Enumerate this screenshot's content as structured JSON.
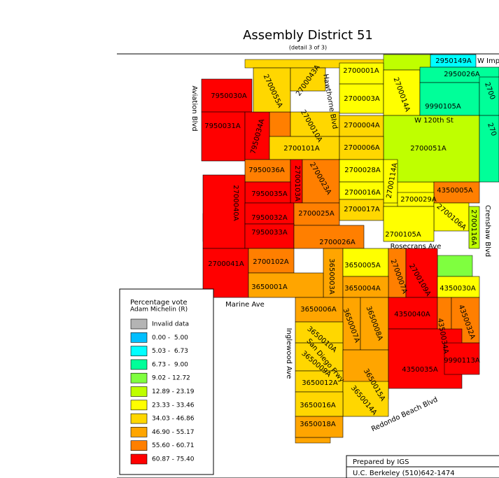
{
  "header": {
    "title": "Assembly District 51",
    "subtitle": "(detail 3 of 3)"
  },
  "precincts": [
    {
      "label": "7950030A",
      "color": "#ff0000"
    },
    {
      "label": "7950031A",
      "color": "#ff0000"
    },
    {
      "label": "7950034A",
      "color": "#ff0000"
    },
    {
      "label": "2700055A",
      "color": "#ffd700"
    },
    {
      "label": "2700043A",
      "color": "#ffd700"
    },
    {
      "label": "2700001A",
      "color": "#ffff00"
    },
    {
      "label": "2700003A",
      "color": "#ffff00"
    },
    {
      "label": "2700014A",
      "color": "#ffff00"
    },
    {
      "label": "2950149A",
      "color": "#00ffff"
    },
    {
      "label": "2950026A",
      "color": "#00ff99"
    },
    {
      "label": "9990105A",
      "color": "#00ff99"
    },
    {
      "label": "2700",
      "color": "#00ff99"
    },
    {
      "label": "2700010A",
      "color": "#ffd700"
    },
    {
      "label": "2700004A",
      "color": "#ffd700"
    },
    {
      "label": "2700051A",
      "color": "#bfff00"
    },
    {
      "label": "270",
      "color": "#00ff99"
    },
    {
      "label": "2700101A",
      "color": "#ffd700"
    },
    {
      "label": "2700006A",
      "color": "#ffd700"
    },
    {
      "label": "7950036A",
      "color": "#ff7f00"
    },
    {
      "label": "2700103A",
      "color": "#ff0000"
    },
    {
      "label": "2700023A",
      "color": "#ff7f00"
    },
    {
      "label": "2700028A",
      "color": "#ffff00"
    },
    {
      "label": "2700114A",
      "color": "#ffff00"
    },
    {
      "label": "4350005A",
      "color": "#ff7f00"
    },
    {
      "label": "7950035A",
      "color": "#ff0000"
    },
    {
      "label": "2700016A",
      "color": "#ffff00"
    },
    {
      "label": "2700029A",
      "color": "#ffff00"
    },
    {
      "label": "2700106A",
      "color": "#ffff00"
    },
    {
      "label": "2700116A",
      "color": "#bfff00"
    },
    {
      "label": "2700040A",
      "color": "#ff0000"
    },
    {
      "label": "7950032A",
      "color": "#ff0000"
    },
    {
      "label": "2700025A",
      "color": "#ff7f00"
    },
    {
      "label": "2700017A",
      "color": "#ffd700"
    },
    {
      "label": "7950033A",
      "color": "#ff0000"
    },
    {
      "label": "2700105A",
      "color": "#ffff00"
    },
    {
      "label": "2700026A",
      "color": "#ff7f00"
    },
    {
      "label": "2700041A",
      "color": "#ff0000"
    },
    {
      "label": "2700102A",
      "color": "#ff7f00"
    },
    {
      "label": "3650003A",
      "color": "#ffa500"
    },
    {
      "label": "3650005A",
      "color": "#ffff00"
    },
    {
      "label": "2700007A",
      "color": "#ff7f00"
    },
    {
      "label": "2700109A",
      "color": "#ff0000"
    },
    {
      "label": "4350030A",
      "color": "#ffff00"
    },
    {
      "label": "3650001A",
      "color": "#ffa500"
    },
    {
      "label": "3650004A",
      "color": "#ffa500"
    },
    {
      "label": "3650006A",
      "color": "#ffa500"
    },
    {
      "label": "3650007A",
      "color": "#ffa500"
    },
    {
      "label": "3650008A",
      "color": "#ffa500"
    },
    {
      "label": "4350040A",
      "color": "#ff0000"
    },
    {
      "label": "4350034A",
      "color": "#ff7f00"
    },
    {
      "label": "4350032A",
      "color": "#ff7f00"
    },
    {
      "label": "3650010A",
      "color": "#ffd700"
    },
    {
      "label": "3650009A",
      "color": "#ffd700"
    },
    {
      "label": "3650015A",
      "color": "#ffa500"
    },
    {
      "label": "4350035A",
      "color": "#ff0000"
    },
    {
      "label": "9990113A",
      "color": "#ff0000"
    },
    {
      "label": "3650012A",
      "color": "#ffd700"
    },
    {
      "label": "3650014A",
      "color": "#ffd700"
    },
    {
      "label": "3650016A",
      "color": "#ffd700"
    },
    {
      "label": "3650018A",
      "color": "#ffa500"
    }
  ],
  "streets": [
    "Aviation Blvd",
    "Hawthorne Blvd",
    "W 120th St",
    "Crenshaw Blvd",
    "Rosecrans Ave",
    "Marine Ave",
    "Inglewood Ave",
    "San Diego Frwy",
    "Redondo Beach Blvd",
    "W Imp"
  ],
  "legend": {
    "title": "Percentage vote",
    "subtitle": "Adam Michelin (R)",
    "items": [
      {
        "label": "Invalid data",
        "color": "#b4b4b4"
      },
      {
        "label": "0.00 -  5.00",
        "color": "#00bfff"
      },
      {
        "label": "5.03 -  6.73",
        "color": "#00ffff"
      },
      {
        "label": "6.73 -  9.00",
        "color": "#00ff99"
      },
      {
        "label": "9.02 - 12.72",
        "color": "#7fff3f"
      },
      {
        "label": "12.89 - 23.19",
        "color": "#bfff00"
      },
      {
        "label": "23.33 - 33.46",
        "color": "#ffff00"
      },
      {
        "label": "34.03 - 46.86",
        "color": "#ffd700"
      },
      {
        "label": "46.90 - 55.17",
        "color": "#ffa500"
      },
      {
        "label": "55.60 - 60.71",
        "color": "#ff7f00"
      },
      {
        "label": "60.87 - 75.40",
        "color": "#ff0000"
      }
    ]
  },
  "footer": {
    "line1": "Prepared by IGS",
    "line2": "U.C. Berkeley (510)642-1474"
  }
}
